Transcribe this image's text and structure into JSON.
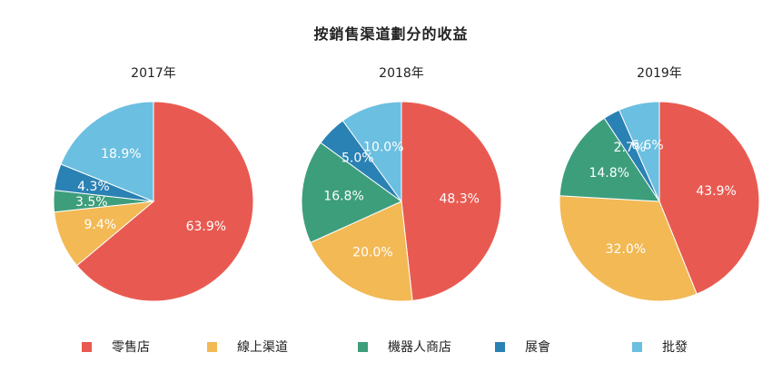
{
  "page_title": "按銷售渠道劃分的收益",
  "colors": {
    "retail": "#e85a51",
    "online": "#f2b955",
    "machine": "#3d9e7c",
    "expo": "#2a81b4",
    "wholesale": "#6bbfe0"
  },
  "legend": [
    {
      "label": "零售店",
      "color_key": "retail"
    },
    {
      "label": "線上渠道",
      "color_key": "online"
    },
    {
      "label": "機器人商店",
      "color_key": "machine"
    },
    {
      "label": "展會",
      "color_key": "expo"
    },
    {
      "label": "批發",
      "color_key": "wholesale"
    }
  ],
  "chart_data": [
    {
      "type": "pie",
      "title": "2017年",
      "categories": [
        "零售店",
        "線上渠道",
        "機器人商店",
        "展會",
        "批發"
      ],
      "values": [
        63.9,
        9.4,
        3.5,
        4.3,
        18.9
      ],
      "labels": [
        "63.9%",
        "9.4%",
        "3.5%",
        "4.3%",
        "18.9%"
      ]
    },
    {
      "type": "pie",
      "title": "2018年",
      "categories": [
        "零售店",
        "線上渠道",
        "機器人商店",
        "展會",
        "批發"
      ],
      "values": [
        48.3,
        20.0,
        16.8,
        5.0,
        10.0
      ],
      "labels": [
        "48.3%",
        "20.0%",
        "16.8%",
        "5.0%",
        "10.0%"
      ]
    },
    {
      "type": "pie",
      "title": "2019年",
      "categories": [
        "零售店",
        "線上渠道",
        "機器人商店",
        "展會",
        "批發"
      ],
      "values": [
        43.9,
        32.0,
        14.8,
        2.7,
        6.6
      ],
      "labels": [
        "43.9%",
        "32.0%",
        "14.8%",
        "2.7%",
        "6.6%"
      ]
    }
  ]
}
